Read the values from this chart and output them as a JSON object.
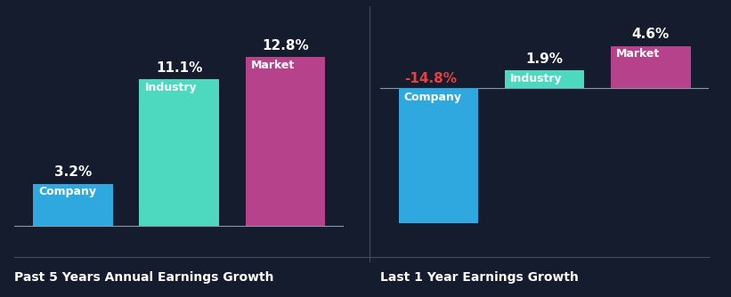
{
  "background_color": "#151c2e",
  "chart1": {
    "title": "Past 5 Years Annual Earnings Growth",
    "categories": [
      "Company",
      "Industry",
      "Market"
    ],
    "values": [
      3.2,
      11.1,
      12.8
    ],
    "colors": [
      "#2fa8e0",
      "#4dd9c0",
      "#b5428a"
    ],
    "value_labels": [
      "3.2%",
      "11.1%",
      "12.8%"
    ],
    "value_colors": [
      "#ffffff",
      "#ffffff",
      "#ffffff"
    ],
    "ylim": [
      -2,
      16
    ]
  },
  "chart2": {
    "title": "Last 1 Year Earnings Growth",
    "categories": [
      "Company",
      "Industry",
      "Market"
    ],
    "values": [
      -14.8,
      1.9,
      4.6
    ],
    "colors": [
      "#2fa8e0",
      "#4dd9c0",
      "#b5428a"
    ],
    "value_labels": [
      "-14.8%",
      "1.9%",
      "4.6%"
    ],
    "value_colors": [
      "#e84040",
      "#ffffff",
      "#ffffff"
    ],
    "ylim": [
      -18,
      8
    ]
  },
  "title_fontsize": 10,
  "label_fontsize": 9,
  "value_fontsize": 11,
  "bar_width": 0.75
}
